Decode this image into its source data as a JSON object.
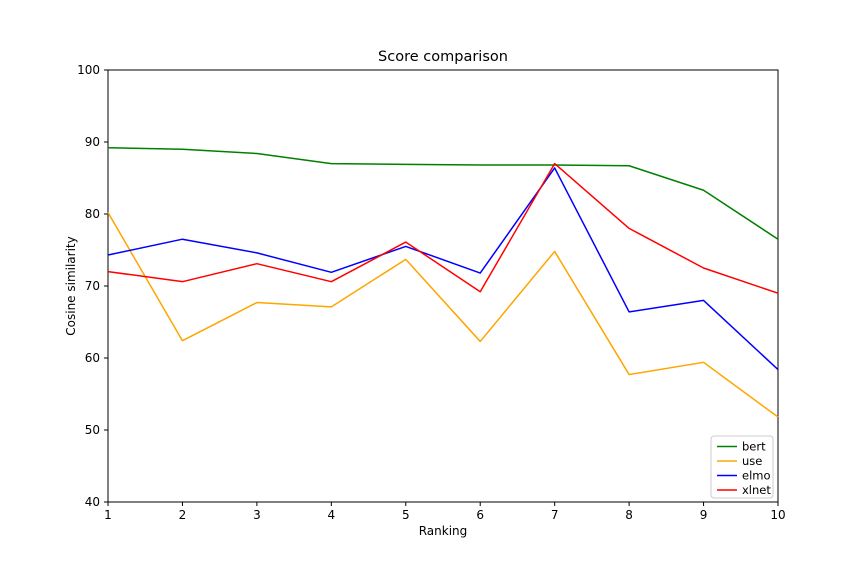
{
  "figure": {
    "background": "#ffffff",
    "spine_color": "#000000",
    "tick_color": "#000000",
    "legend_border_color": "#cccccc"
  },
  "chart_data": {
    "type": "line",
    "title": "Score comparison",
    "xlabel": "Ranking",
    "ylabel": "Cosine similarity",
    "x": [
      1,
      2,
      3,
      4,
      5,
      6,
      7,
      8,
      9,
      10
    ],
    "x_tick_labels": [
      "1",
      "2",
      "3",
      "4",
      "5",
      "6",
      "7",
      "8",
      "9",
      "10"
    ],
    "ylim": [
      40,
      100
    ],
    "y_ticks": [
      40,
      50,
      60,
      70,
      80,
      90,
      100
    ],
    "grid": false,
    "legend_position": "lower right",
    "series": [
      {
        "name": "bert",
        "color": "#008000",
        "values": [
          89.2,
          89.0,
          88.4,
          87.0,
          86.9,
          86.8,
          86.8,
          86.7,
          83.3,
          76.5
        ]
      },
      {
        "name": "use",
        "color": "#ffa500",
        "values": [
          80.2,
          62.4,
          67.7,
          67.1,
          73.7,
          62.3,
          74.8,
          57.7,
          59.4,
          51.8
        ]
      },
      {
        "name": "elmo",
        "color": "#0000ff",
        "values": [
          74.3,
          76.5,
          74.6,
          71.9,
          75.5,
          71.8,
          86.4,
          66.4,
          68.0,
          58.4
        ]
      },
      {
        "name": "xlnet",
        "color": "#ff0000",
        "values": [
          72.0,
          70.6,
          73.1,
          70.6,
          76.1,
          69.2,
          87.0,
          78.0,
          72.5,
          69.0
        ]
      }
    ]
  }
}
